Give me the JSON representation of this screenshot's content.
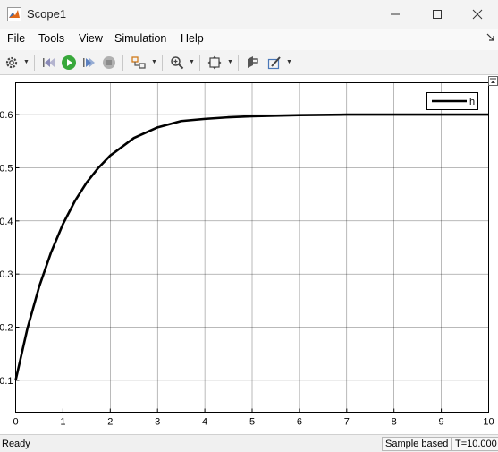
{
  "window": {
    "title": "Scope1"
  },
  "menu": {
    "file": "File",
    "tools": "Tools",
    "view": "View",
    "simulation": "Simulation",
    "help": "Help"
  },
  "toolbar": {
    "icons": [
      "gear-icon",
      "step-back-icon",
      "run-icon",
      "step-forward-icon",
      "stop-icon",
      "signal-selection-icon",
      "zoom-icon",
      "fit-to-view-icon",
      "highlight-simulink-block-icon",
      "style-icon"
    ]
  },
  "chart_data": {
    "type": "line",
    "series": [
      {
        "name": "h",
        "color": "#000000",
        "x": [
          0,
          0.25,
          0.5,
          0.75,
          1,
          1.25,
          1.5,
          1.75,
          2,
          2.5,
          3,
          3.5,
          4,
          4.5,
          5,
          5.5,
          6,
          7,
          8,
          9,
          10
        ],
        "y": [
          0.1,
          0.198,
          0.277,
          0.341,
          0.394,
          0.437,
          0.472,
          0.5,
          0.523,
          0.556,
          0.576,
          0.588,
          0.592,
          0.595,
          0.597,
          0.598,
          0.599,
          0.6,
          0.6,
          0.6,
          0.6
        ]
      }
    ],
    "xlim": [
      0,
      10
    ],
    "ylim": [
      0.04,
      0.66
    ],
    "xticks": [
      "0",
      "1",
      "2",
      "3",
      "4",
      "5",
      "6",
      "7",
      "8",
      "9",
      "10"
    ],
    "yticks": [
      "0.1",
      "0.2",
      "0.3",
      "0.4",
      "0.5",
      "0.6"
    ],
    "grid": true,
    "legend_position": "top-right"
  },
  "status": {
    "ready": "Ready",
    "mode": "Sample based",
    "time": "T=10.000"
  }
}
